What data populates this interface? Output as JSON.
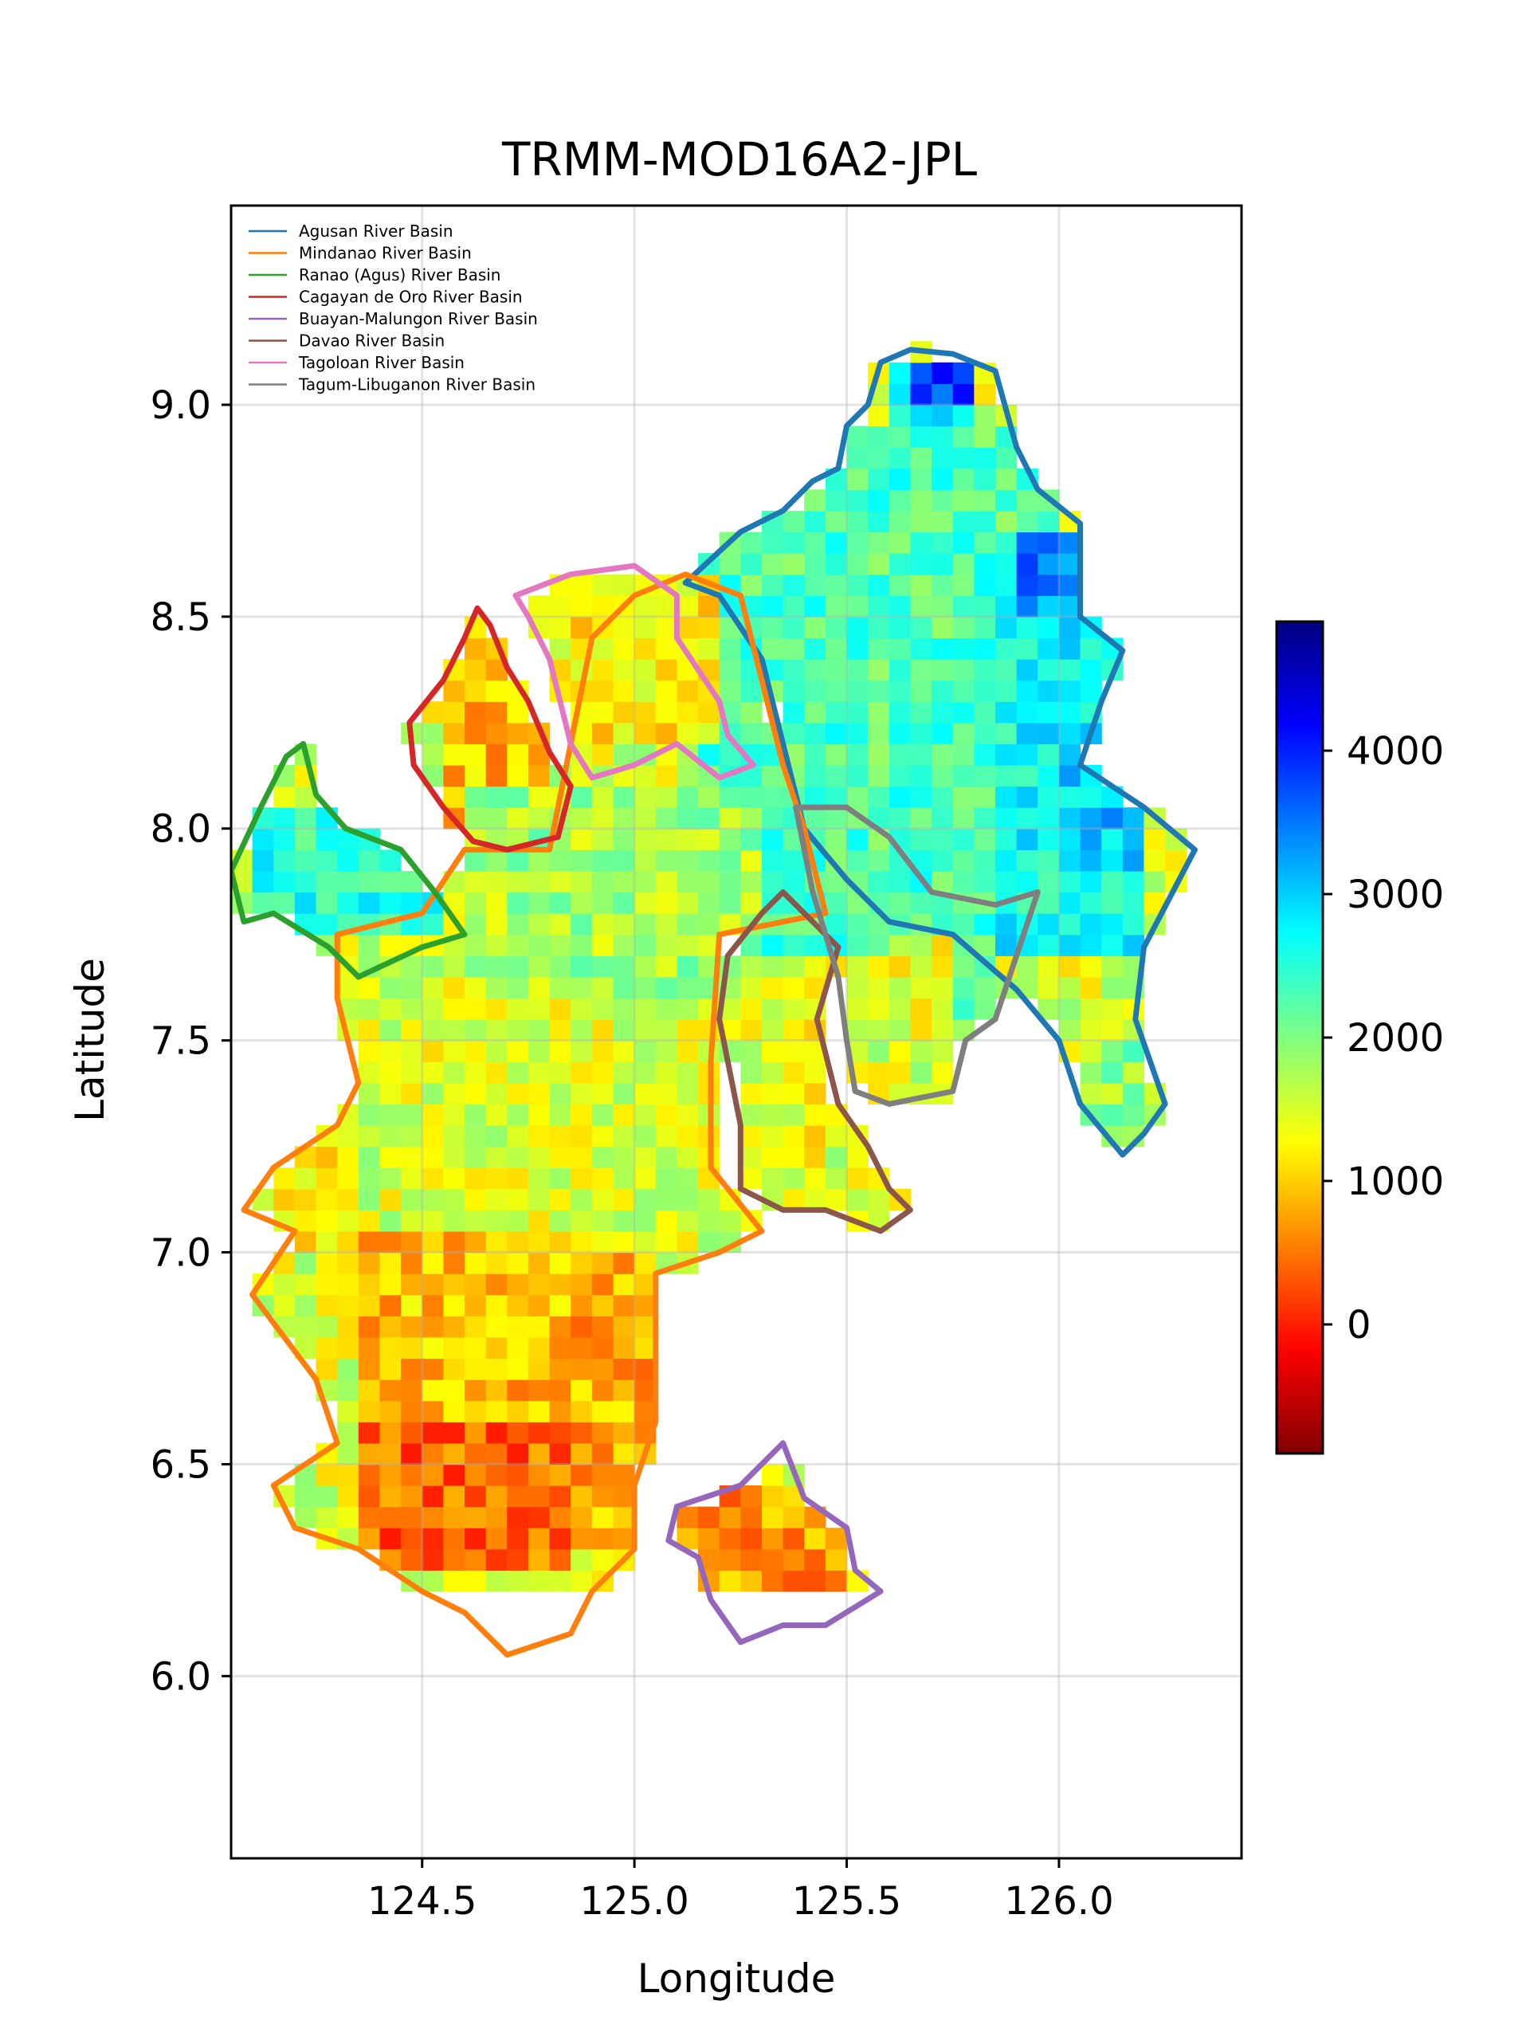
{
  "chart_data": {
    "type": "heatmap",
    "title": "TRMM-MOD16A2-JPL",
    "xlabel": "Longitude",
    "ylabel": "Latitude",
    "xlim": [
      124.05,
      126.43
    ],
    "ylim": [
      5.57,
      9.47
    ],
    "xticks": [
      {
        "value": 124.5,
        "label": "124.5"
      },
      {
        "value": 125.0,
        "label": "125.0"
      },
      {
        "value": 125.5,
        "label": "125.5"
      },
      {
        "value": 126.0,
        "label": "126.0"
      }
    ],
    "yticks": [
      {
        "value": 6.0,
        "label": "6.0"
      },
      {
        "value": 6.5,
        "label": "6.5"
      },
      {
        "value": 7.0,
        "label": "7.0"
      },
      {
        "value": 7.5,
        "label": "7.5"
      },
      {
        "value": 8.0,
        "label": "8.0"
      },
      {
        "value": 8.5,
        "label": "8.5"
      },
      {
        "value": 9.0,
        "label": "9.0"
      }
    ],
    "grid": true,
    "legend_position": "top-left",
    "cell_size_deg": 0.05,
    "colormap": "jet_r",
    "colorbar": {
      "vmin": -900,
      "vmax": 4900,
      "ticks": [
        {
          "value": 0,
          "label": "0"
        },
        {
          "value": 1000,
          "label": "1000"
        },
        {
          "value": 2000,
          "label": "2000"
        },
        {
          "value": 3000,
          "label": "3000"
        },
        {
          "value": 4000,
          "label": "4000"
        }
      ],
      "stops": [
        "#800000",
        "#ff0000",
        "#ff8000",
        "#ffff00",
        "#80ff80",
        "#00ffff",
        "#0080ff",
        "#0000ff",
        "#000080"
      ]
    },
    "value_regions": [
      {
        "lon": [
          125.15,
          126.0
        ],
        "lat": [
          7.72,
          8.95
        ],
        "value": 2300
      },
      {
        "lon": [
          125.6,
          125.8
        ],
        "lat": [
          8.95,
          9.12
        ],
        "value": 2800
      },
      {
        "lon": [
          125.65,
          125.8
        ],
        "lat": [
          9.0,
          9.12
        ],
        "value": 3900
      },
      {
        "lon": [
          125.85,
          126.2
        ],
        "lat": [
          7.72,
          8.7
        ],
        "value": 2700
      },
      {
        "lon": [
          125.9,
          126.05
        ],
        "lat": [
          8.5,
          8.7
        ],
        "value": 3400
      },
      {
        "lon": [
          126.0,
          126.2
        ],
        "lat": [
          7.9,
          8.2
        ],
        "value": 3000
      },
      {
        "lon": [
          125.6,
          125.85
        ],
        "lat": [
          7.5,
          7.75
        ],
        "value": 2000
      },
      {
        "lon": [
          126.05,
          126.2
        ],
        "lat": [
          7.3,
          7.5
        ],
        "value": 1900
      },
      {
        "lon": [
          124.8,
          125.2
        ],
        "lat": [
          8.2,
          8.6
        ],
        "value": 1200
      },
      {
        "lon": [
          124.55,
          124.8
        ],
        "lat": [
          7.95,
          8.45
        ],
        "value": 900
      },
      {
        "lon": [
          124.6,
          125.3
        ],
        "lat": [
          7.6,
          8.1
        ],
        "value": 1800
      },
      {
        "lon": [
          124.3,
          125.2
        ],
        "lat": [
          7.0,
          7.6
        ],
        "value": 1500
      },
      {
        "lon": [
          124.1,
          124.55
        ],
        "lat": [
          7.75,
          8.05
        ],
        "value": 2500
      },
      {
        "lon": [
          124.1,
          124.35
        ],
        "lat": [
          7.0,
          7.25
        ],
        "value": 1200
      },
      {
        "lon": [
          124.35,
          124.85
        ],
        "lat": [
          6.6,
          7.05
        ],
        "value": 900
      },
      {
        "lon": [
          124.35,
          124.85
        ],
        "lat": [
          6.25,
          6.6
        ],
        "value": 400
      },
      {
        "lon": [
          124.85,
          125.05
        ],
        "lat": [
          6.3,
          7.0
        ],
        "value": 800
      },
      {
        "lon": [
          125.05,
          125.5
        ],
        "lat": [
          6.22,
          6.45
        ],
        "value": 700
      },
      {
        "lon": [
          125.3,
          125.45
        ],
        "lat": [
          7.2,
          7.55
        ],
        "value": 1300
      },
      {
        "lon": [
          125.6,
          125.75
        ],
        "lat": [
          7.5,
          7.75
        ],
        "value": 1400
      }
    ],
    "series": [
      {
        "name": "Agusan River Basin",
        "color": "#1f77b4",
        "points": [
          [
            125.12,
            8.58
          ],
          [
            125.25,
            8.7
          ],
          [
            125.35,
            8.75
          ],
          [
            125.42,
            8.82
          ],
          [
            125.48,
            8.85
          ],
          [
            125.5,
            8.95
          ],
          [
            125.55,
            9.0
          ],
          [
            125.58,
            9.1
          ],
          [
            125.65,
            9.13
          ],
          [
            125.75,
            9.12
          ],
          [
            125.85,
            9.08
          ],
          [
            125.9,
            8.9
          ],
          [
            125.95,
            8.8
          ],
          [
            126.05,
            8.72
          ],
          [
            126.05,
            8.5
          ],
          [
            126.15,
            8.42
          ],
          [
            126.1,
            8.3
          ],
          [
            126.05,
            8.15
          ],
          [
            126.2,
            8.05
          ],
          [
            126.32,
            7.95
          ],
          [
            126.2,
            7.72
          ],
          [
            126.18,
            7.55
          ],
          [
            126.25,
            7.35
          ],
          [
            126.2,
            7.28
          ],
          [
            126.15,
            7.23
          ],
          [
            126.05,
            7.35
          ],
          [
            126.0,
            7.5
          ],
          [
            125.9,
            7.62
          ],
          [
            125.75,
            7.75
          ],
          [
            125.6,
            7.78
          ],
          [
            125.5,
            7.88
          ],
          [
            125.4,
            8.0
          ],
          [
            125.35,
            8.2
          ],
          [
            125.3,
            8.4
          ],
          [
            125.2,
            8.55
          ],
          [
            125.12,
            8.58
          ]
        ]
      },
      {
        "name": "Mindanao River Basin",
        "color": "#ff7f0e",
        "points": [
          [
            125.12,
            8.6
          ],
          [
            125.25,
            8.55
          ],
          [
            125.3,
            8.35
          ],
          [
            125.35,
            8.15
          ],
          [
            125.4,
            8.0
          ],
          [
            125.45,
            7.8
          ],
          [
            125.2,
            7.75
          ],
          [
            125.18,
            7.45
          ],
          [
            125.18,
            7.2
          ],
          [
            125.3,
            7.05
          ],
          [
            125.2,
            7.0
          ],
          [
            125.05,
            6.95
          ],
          [
            125.05,
            6.6
          ],
          [
            125.0,
            6.45
          ],
          [
            125.0,
            6.3
          ],
          [
            124.9,
            6.2
          ],
          [
            124.85,
            6.1
          ],
          [
            124.7,
            6.05
          ],
          [
            124.6,
            6.15
          ],
          [
            124.5,
            6.2
          ],
          [
            124.35,
            6.3
          ],
          [
            124.2,
            6.35
          ],
          [
            124.15,
            6.45
          ],
          [
            124.3,
            6.55
          ],
          [
            124.25,
            6.7
          ],
          [
            124.1,
            6.9
          ],
          [
            124.2,
            7.05
          ],
          [
            124.08,
            7.1
          ],
          [
            124.15,
            7.2
          ],
          [
            124.3,
            7.3
          ],
          [
            124.35,
            7.4
          ],
          [
            124.3,
            7.6
          ],
          [
            124.3,
            7.75
          ],
          [
            124.5,
            7.8
          ],
          [
            124.6,
            7.95
          ],
          [
            124.8,
            7.95
          ],
          [
            124.85,
            8.2
          ],
          [
            124.9,
            8.45
          ],
          [
            125.0,
            8.55
          ],
          [
            125.12,
            8.6
          ]
        ]
      },
      {
        "name": "Ranao (Agus) River Basin",
        "color": "#2ca02c",
        "points": [
          [
            124.18,
            8.17
          ],
          [
            124.22,
            8.2
          ],
          [
            124.25,
            8.08
          ],
          [
            124.32,
            8.0
          ],
          [
            124.45,
            7.95
          ],
          [
            124.53,
            7.85
          ],
          [
            124.6,
            7.75
          ],
          [
            124.5,
            7.72
          ],
          [
            124.35,
            7.65
          ],
          [
            124.28,
            7.72
          ],
          [
            124.15,
            7.8
          ],
          [
            124.08,
            7.78
          ],
          [
            124.05,
            7.9
          ],
          [
            124.12,
            8.05
          ],
          [
            124.18,
            8.17
          ]
        ]
      },
      {
        "name": "Cagayan de Oro River Basin",
        "color": "#d62728",
        "points": [
          [
            124.63,
            8.52
          ],
          [
            124.66,
            8.48
          ],
          [
            124.7,
            8.38
          ],
          [
            124.75,
            8.3
          ],
          [
            124.8,
            8.18
          ],
          [
            124.85,
            8.1
          ],
          [
            124.82,
            7.98
          ],
          [
            124.7,
            7.95
          ],
          [
            124.62,
            7.97
          ],
          [
            124.55,
            8.05
          ],
          [
            124.48,
            8.15
          ],
          [
            124.47,
            8.25
          ],
          [
            124.55,
            8.35
          ],
          [
            124.6,
            8.45
          ],
          [
            124.63,
            8.52
          ]
        ]
      },
      {
        "name": "Buayan-Malungon River Basin",
        "color": "#9467bd",
        "points": [
          [
            125.1,
            6.4
          ],
          [
            125.25,
            6.45
          ],
          [
            125.35,
            6.55
          ],
          [
            125.4,
            6.42
          ],
          [
            125.5,
            6.35
          ],
          [
            125.52,
            6.25
          ],
          [
            125.58,
            6.2
          ],
          [
            125.45,
            6.12
          ],
          [
            125.35,
            6.12
          ],
          [
            125.25,
            6.08
          ],
          [
            125.18,
            6.18
          ],
          [
            125.15,
            6.28
          ],
          [
            125.08,
            6.32
          ],
          [
            125.1,
            6.4
          ]
        ]
      },
      {
        "name": "Davao River Basin",
        "color": "#8c564b",
        "points": [
          [
            125.35,
            7.85
          ],
          [
            125.42,
            7.78
          ],
          [
            125.48,
            7.72
          ],
          [
            125.43,
            7.55
          ],
          [
            125.48,
            7.35
          ],
          [
            125.55,
            7.25
          ],
          [
            125.6,
            7.15
          ],
          [
            125.65,
            7.1
          ],
          [
            125.58,
            7.05
          ],
          [
            125.45,
            7.1
          ],
          [
            125.35,
            7.1
          ],
          [
            125.25,
            7.15
          ],
          [
            125.25,
            7.3
          ],
          [
            125.2,
            7.55
          ],
          [
            125.22,
            7.7
          ],
          [
            125.3,
            7.8
          ],
          [
            125.35,
            7.85
          ]
        ]
      },
      {
        "name": "Tagoloan River Basin",
        "color": "#e377c2",
        "points": [
          [
            124.72,
            8.55
          ],
          [
            124.85,
            8.6
          ],
          [
            125.0,
            8.62
          ],
          [
            125.1,
            8.55
          ],
          [
            125.1,
            8.45
          ],
          [
            125.2,
            8.3
          ],
          [
            125.22,
            8.22
          ],
          [
            125.28,
            8.15
          ],
          [
            125.2,
            8.12
          ],
          [
            125.1,
            8.2
          ],
          [
            125.0,
            8.15
          ],
          [
            124.9,
            8.12
          ],
          [
            124.85,
            8.2
          ],
          [
            124.8,
            8.4
          ],
          [
            124.75,
            8.5
          ],
          [
            124.72,
            8.55
          ]
        ]
      },
      {
        "name": "Tagum-Libuganon River Basin",
        "color": "#7f7f7f",
        "points": [
          [
            125.38,
            8.05
          ],
          [
            125.5,
            8.05
          ],
          [
            125.6,
            7.98
          ],
          [
            125.7,
            7.85
          ],
          [
            125.85,
            7.82
          ],
          [
            125.95,
            7.85
          ],
          [
            125.9,
            7.7
          ],
          [
            125.85,
            7.55
          ],
          [
            125.78,
            7.5
          ],
          [
            125.75,
            7.38
          ],
          [
            125.6,
            7.35
          ],
          [
            125.52,
            7.38
          ],
          [
            125.5,
            7.5
          ],
          [
            125.48,
            7.65
          ],
          [
            125.42,
            7.85
          ],
          [
            125.38,
            8.05
          ]
        ]
      }
    ]
  }
}
